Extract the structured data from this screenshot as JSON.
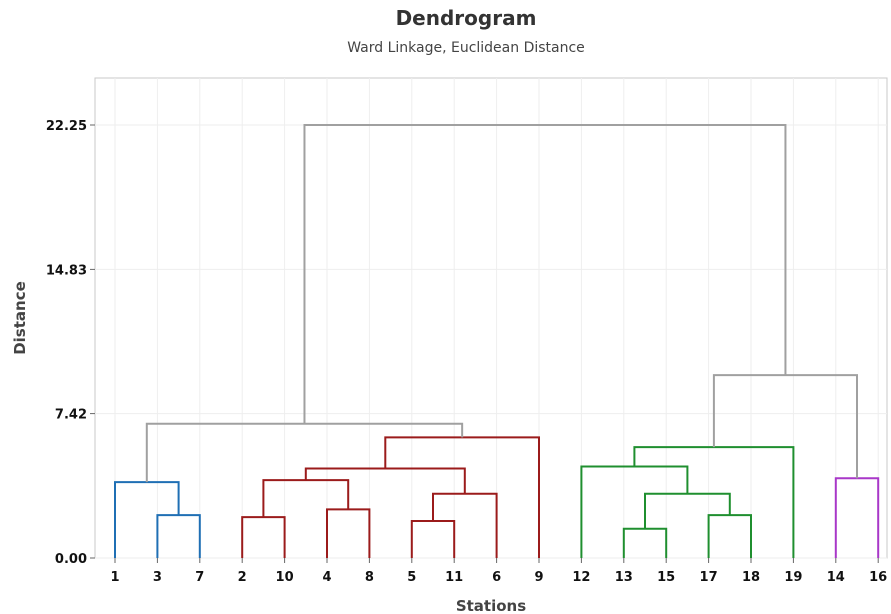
{
  "chart_data": {
    "type": "dendrogram",
    "title": "Dendrogram",
    "subtitle": "Ward Linkage, Euclidean Distance",
    "xlabel": "Stations",
    "ylabel": "Distance",
    "ylim": [
      0,
      22.25
    ],
    "yticks": [
      "0.00",
      "7.42",
      "14.83",
      "22.25"
    ],
    "leaf_order": [
      "1",
      "3",
      "7",
      "2",
      "10",
      "4",
      "8",
      "5",
      "11",
      "6",
      "9",
      "12",
      "13",
      "15",
      "17",
      "18",
      "19",
      "14",
      "16"
    ],
    "grid": true,
    "colors": {
      "cluster_1": "#1f6fb4",
      "cluster_2": "#9b1b1b",
      "cluster_3": "#1f8f2f",
      "cluster_4": "#a837c8",
      "link": "#a0a0a0"
    },
    "merges": [
      {
        "id": "a",
        "left": "3",
        "right": "7",
        "height": 2.2,
        "color": "cluster_1"
      },
      {
        "id": "b",
        "left": "1",
        "right": "a",
        "height": 3.9,
        "color": "cluster_1"
      },
      {
        "id": "c",
        "left": "2",
        "right": "10",
        "height": 2.1,
        "color": "cluster_2"
      },
      {
        "id": "d",
        "left": "4",
        "right": "8",
        "height": 2.5,
        "color": "cluster_2"
      },
      {
        "id": "e",
        "left": "c",
        "right": "d",
        "height": 4.0,
        "color": "cluster_2"
      },
      {
        "id": "f",
        "left": "5",
        "right": "11",
        "height": 1.9,
        "color": "cluster_2"
      },
      {
        "id": "g",
        "left": "f",
        "right": "6",
        "height": 3.3,
        "color": "cluster_2"
      },
      {
        "id": "h",
        "left": "e",
        "right": "g",
        "height": 4.6,
        "color": "cluster_2"
      },
      {
        "id": "i",
        "left": "h",
        "right": "9",
        "height": 6.2,
        "color": "cluster_2"
      },
      {
        "id": "j",
        "left": "b",
        "right": "i",
        "height": 6.9,
        "color": "link"
      },
      {
        "id": "k",
        "left": "13",
        "right": "15",
        "height": 1.5,
        "color": "cluster_3"
      },
      {
        "id": "l",
        "left": "17",
        "right": "18",
        "height": 2.2,
        "color": "cluster_3"
      },
      {
        "id": "m",
        "left": "k",
        "right": "l",
        "height": 3.3,
        "color": "cluster_3"
      },
      {
        "id": "n",
        "left": "12",
        "right": "m",
        "height": 4.7,
        "color": "cluster_3"
      },
      {
        "id": "o",
        "left": "n",
        "right": "19",
        "height": 5.7,
        "color": "cluster_3"
      },
      {
        "id": "p",
        "left": "14",
        "right": "16",
        "height": 4.1,
        "color": "cluster_4"
      },
      {
        "id": "q",
        "left": "o",
        "right": "p",
        "height": 9.4,
        "color": "link"
      },
      {
        "id": "r",
        "left": "j",
        "right": "q",
        "height": 22.25,
        "color": "link"
      }
    ]
  }
}
